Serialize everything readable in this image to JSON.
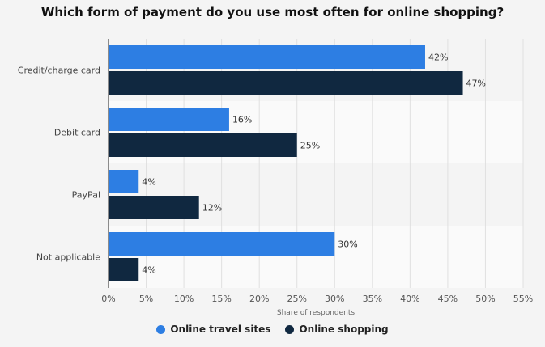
{
  "chart_data": {
    "type": "bar",
    "orientation": "horizontal",
    "title": "Which form of payment do you use most often for online shopping?",
    "categories": [
      "Credit/charge card",
      "Debit card",
      "PayPal",
      "Not applicable"
    ],
    "series": [
      {
        "name": "Online travel sites",
        "color": "#2d7ee3",
        "values": [
          42,
          16,
          4,
          30
        ]
      },
      {
        "name": "Online shopping",
        "color": "#102840",
        "values": [
          47,
          25,
          12,
          4
        ]
      }
    ],
    "value_suffix": "%",
    "xlabel": "Share of respondents",
    "ylabel": "",
    "xlim": [
      0,
      55
    ],
    "x_ticks": [
      "0%",
      "5%",
      "10%",
      "15%",
      "20%",
      "25%",
      "30%",
      "35%",
      "40%",
      "45%",
      "50%",
      "55%"
    ],
    "grid": true,
    "legend_position": "bottom"
  }
}
